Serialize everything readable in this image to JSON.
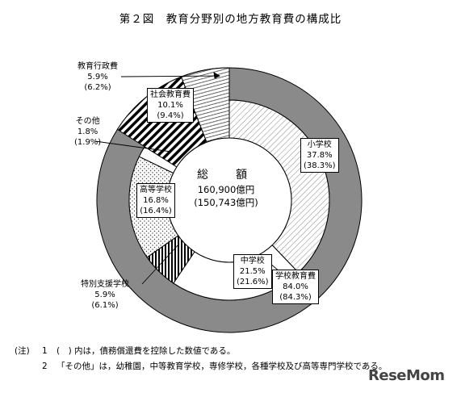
{
  "title": "第２図　教育分野別の地方教育費の構成比",
  "chart_data": {
    "type": "pie",
    "center": {
      "label": "総　額",
      "total": "160,900億円",
      "total_excl": "(150,743億円)"
    },
    "outer_ring": [
      {
        "name": "学校教育費",
        "value": 84.0,
        "value_excl": 84.3
      },
      {
        "name": "社会教育費",
        "value": 10.1,
        "value_excl": 9.4
      },
      {
        "name": "教育行政費",
        "value": 5.9,
        "value_excl": 6.2
      }
    ],
    "inner_ring": [
      {
        "name": "小学校",
        "value": 37.8,
        "value_excl": 38.3
      },
      {
        "name": "中学校",
        "value": 21.5,
        "value_excl": 21.6
      },
      {
        "name": "特別支援学校",
        "value": 5.9,
        "value_excl": 6.1
      },
      {
        "name": "高等学校",
        "value": 16.8,
        "value_excl": 16.4
      },
      {
        "name": "その他",
        "value": 1.8,
        "value_excl": 1.9
      },
      {
        "name": "社会教育費",
        "value": 10.1,
        "value_excl": 9.4
      },
      {
        "name": "教育行政費",
        "value": 5.9,
        "value_excl": 6.2
      }
    ]
  },
  "labels": {
    "shougakkou": {
      "name": "小学校",
      "pct": "37.8%",
      "pct2": "(38.3%)"
    },
    "chuugakkou": {
      "name": "中学校",
      "pct": "21.5%",
      "pct2": "(21.6%)"
    },
    "koutou": {
      "name": "高等学校",
      "pct": "16.8%",
      "pct2": "(16.4%)"
    },
    "tokubetsu": {
      "name": "特別支援学校",
      "pct": "5.9%",
      "pct2": "(6.1%)"
    },
    "sonota": {
      "name": "その他",
      "pct": "1.8%",
      "pct2": "(1.9%)"
    },
    "shakai": {
      "name": "社会教育費",
      "pct": "10.1%",
      "pct2": "(9.4%)"
    },
    "gyousei": {
      "name": "教育行政費",
      "pct": "5.9%",
      "pct2": "(6.2%)"
    },
    "gakkou": {
      "name": "学校教育費",
      "pct": "84.0%",
      "pct2": "(84.3%)"
    }
  },
  "notes": {
    "head": "(注)",
    "n1": "1",
    "t1": "(　) 内は，債務償還費を控除した数値である。",
    "n2": "2",
    "t2": "「その他」は，幼稚園，中等教育学校，専修学校，各種学校及び高等専門学校である。"
  },
  "watermark": "ReseMom"
}
